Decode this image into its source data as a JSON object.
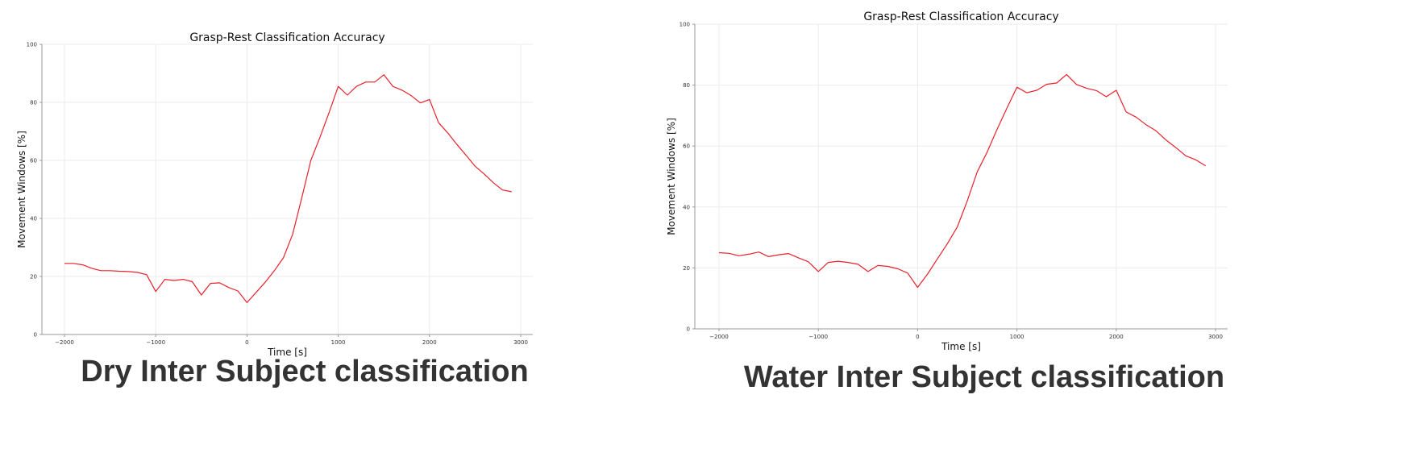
{
  "chart_data": [
    {
      "type": "line",
      "title": "Grasp-Rest Classification Accuracy",
      "xlabel": "Time [s]",
      "ylabel": "Movement Windows [%]",
      "xlim": [
        -2000,
        3000
      ],
      "ylim": [
        0,
        100
      ],
      "xticks": [
        "−2000",
        "−1000",
        "0",
        "1000",
        "2000",
        "3000"
      ],
      "yticks": [
        "0",
        "20",
        "40",
        "60",
        "80",
        "100"
      ],
      "grid": true,
      "line_color": "#e8212b",
      "caption": "Dry Inter Subject classification",
      "x": [
        -2000,
        -1900,
        -1800,
        -1700,
        -1600,
        -1500,
        -1400,
        -1300,
        -1200,
        -1100,
        -1000,
        -900,
        -800,
        -700,
        -600,
        -500,
        -400,
        -300,
        -200,
        -100,
        0,
        100,
        200,
        300,
        400,
        500,
        600,
        700,
        800,
        900,
        1000,
        1100,
        1200,
        1300,
        1400,
        1500,
        1600,
        1700,
        1800,
        1900,
        2000,
        2100,
        2200,
        2300,
        2400,
        2500,
        2600,
        2700,
        2800,
        2900
      ],
      "y": [
        24.5,
        24.5,
        24,
        22.8,
        22,
        22,
        21.8,
        21.7,
        21.4,
        20.6,
        14.8,
        19,
        18.6,
        19,
        18.2,
        13.6,
        17.6,
        17.8,
        16.2,
        15,
        11,
        14.5,
        18,
        22,
        26.5,
        34.5,
        47,
        60,
        68,
        76.5,
        85.5,
        82.5,
        85.5,
        87,
        87,
        89.5,
        85.5,
        84.2,
        82.3,
        79.8,
        81,
        73,
        69.5,
        65.5,
        61.8,
        58,
        55.3,
        52.3,
        49.8,
        49.2
      ]
    },
    {
      "type": "line",
      "title": "Grasp-Rest Classification Accuracy",
      "xlabel": "Time [s]",
      "ylabel": "Movement Windows [%]",
      "xlim": [
        -2000,
        3000
      ],
      "ylim": [
        0,
        100
      ],
      "xticks": [
        "−2000",
        "−1000",
        "0",
        "1000",
        "2000",
        "3000"
      ],
      "yticks": [
        "0",
        "20",
        "40",
        "60",
        "80",
        "100"
      ],
      "grid": true,
      "line_color": "#e8212b",
      "caption": "Water Inter Subject classification",
      "x": [
        -2000,
        -1900,
        -1800,
        -1700,
        -1600,
        -1500,
        -1400,
        -1300,
        -1200,
        -1100,
        -1000,
        -900,
        -800,
        -700,
        -600,
        -500,
        -400,
        -300,
        -200,
        -100,
        0,
        100,
        200,
        300,
        400,
        500,
        600,
        700,
        800,
        900,
        1000,
        1100,
        1200,
        1300,
        1400,
        1500,
        1600,
        1700,
        1800,
        1900,
        2000,
        2100,
        2200,
        2300,
        2400,
        2500,
        2600,
        2700,
        2800,
        2900
      ],
      "y": [
        25,
        24.8,
        24,
        24.5,
        25.2,
        23.7,
        24.3,
        24.7,
        23.3,
        22,
        18.8,
        21.8,
        22.2,
        21.8,
        21.2,
        18.8,
        20.8,
        20.5,
        19.7,
        18.3,
        13.6,
        18,
        23,
        28,
        33.5,
        42,
        51.5,
        58,
        65.5,
        72.5,
        79.3,
        77.5,
        78.3,
        80.3,
        80.7,
        83.5,
        80.2,
        79,
        78.2,
        76.2,
        78.3,
        71.2,
        69.5,
        67,
        65,
        62,
        59.5,
        56.8,
        55.5,
        53.5
      ]
    }
  ]
}
